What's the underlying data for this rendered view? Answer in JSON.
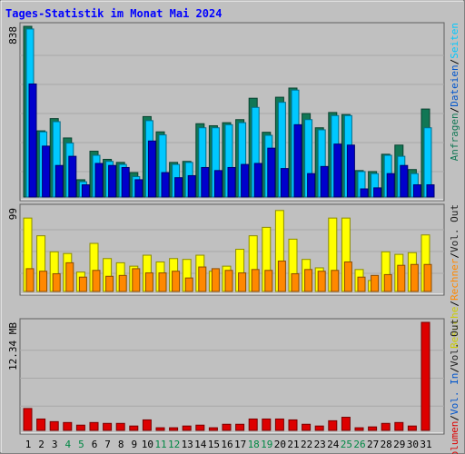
{
  "title": "Tages-Statistik im Monat Mai 2024",
  "colors": {
    "background": "#c0c0c0",
    "panel": "#c0c0c0",
    "title": "#0000ff",
    "anfragen": "#117755",
    "dateien": "#00c8ff",
    "seiten": "#0000cc",
    "besuche": "#ffff00",
    "rechner": "#ff8800",
    "volumen": "#dd0000",
    "weekend_label": "#008844",
    "weekday_label": "#000000"
  },
  "chart_data": [
    {
      "type": "bar",
      "panel": "top",
      "ytick": "838",
      "ylim": [
        0,
        838
      ],
      "side_legend": [
        {
          "text": "Anfragen",
          "color": "#117755"
        },
        {
          "text": "/",
          "color": "#000000"
        },
        {
          "text": "Dateien",
          "color": "#0055cc"
        },
        {
          "text": "/",
          "color": "#000000"
        },
        {
          "text": "Seiten",
          "color": "#00c8ff"
        }
      ],
      "categories": [
        "1",
        "2",
        "3",
        "4",
        "5",
        "6",
        "7",
        "8",
        "9",
        "10",
        "11",
        "12",
        "13",
        "14",
        "15",
        "16",
        "17",
        "18",
        "19",
        "20",
        "21",
        "22",
        "23",
        "24",
        "25",
        "26",
        "27",
        "28",
        "29",
        "30",
        "31"
      ],
      "series": [
        {
          "name": "Anfragen",
          "values": [
            838,
            325,
            385,
            290,
            85,
            225,
            185,
            170,
            120,
            395,
            320,
            170,
            175,
            360,
            350,
            365,
            380,
            485,
            318,
            490,
            535,
            410,
            340,
            415,
            405,
            130,
            125,
            210,
            255,
            135,
            432
          ]
        },
        {
          "name": "Dateien",
          "values": [
            825,
            320,
            370,
            265,
            75,
            205,
            175,
            160,
            100,
            375,
            305,
            160,
            170,
            340,
            340,
            355,
            365,
            440,
            303,
            465,
            525,
            380,
            330,
            400,
            400,
            125,
            115,
            205,
            200,
            115,
            340
          ]
        },
        {
          "name": "Seiten",
          "values": [
            555,
            250,
            155,
            200,
            60,
            165,
            155,
            145,
            85,
            275,
            120,
            95,
            105,
            145,
            130,
            145,
            160,
            165,
            240,
            140,
            355,
            115,
            150,
            260,
            255,
            40,
            45,
            115,
            155,
            60,
            60
          ]
        }
      ]
    },
    {
      "type": "bar",
      "panel": "middle",
      "ytick": "99",
      "ylim": [
        0,
        99
      ],
      "side_legend": [
        {
          "text": "Besuche",
          "color": "#cccc00"
        },
        {
          "text": "/",
          "color": "#000000"
        },
        {
          "text": "Rechner",
          "color": "#ff8800"
        },
        {
          "text": "/",
          "color": "#000000"
        },
        {
          "text": "Vol. Out",
          "color": "#222222"
        }
      ],
      "categories": [
        "1",
        "2",
        "3",
        "4",
        "5",
        "6",
        "7",
        "8",
        "9",
        "10",
        "11",
        "12",
        "13",
        "14",
        "15",
        "16",
        "17",
        "18",
        "19",
        "20",
        "21",
        "22",
        "23",
        "24",
        "25",
        "26",
        "27",
        "28",
        "29",
        "30",
        "31"
      ],
      "series": [
        {
          "name": "Besuche",
          "values": [
            87,
            66,
            47,
            45,
            23,
            57,
            39,
            34,
            30,
            43,
            35,
            39,
            38,
            43,
            24,
            30,
            50,
            66,
            76,
            96,
            62,
            38,
            28,
            87,
            87,
            26,
            13,
            47,
            44,
            46,
            67
          ]
        },
        {
          "name": "Rechner",
          "values": [
            27,
            24,
            21,
            34,
            17,
            25,
            18,
            19,
            27,
            22,
            22,
            24,
            16,
            29,
            27,
            25,
            22,
            26,
            25,
            36,
            21,
            26,
            24,
            25,
            35,
            17,
            19,
            20,
            31,
            32,
            32
          ]
        },
        {
          "name": "Vol. Out",
          "values": [
            0,
            0,
            0,
            0,
            0,
            0,
            0,
            0,
            0,
            0,
            0,
            0,
            0,
            0,
            0,
            0,
            0,
            0,
            0,
            0,
            0,
            0,
            0,
            0,
            0,
            0,
            0,
            0,
            0,
            0,
            0
          ]
        }
      ]
    },
    {
      "type": "bar",
      "panel": "bottom",
      "ytick": "12.34 MB",
      "ylim": [
        0,
        12.34
      ],
      "side_legend": [
        {
          "text": "Volumen",
          "color": "#dd0000"
        },
        {
          "text": "/",
          "color": "#000000"
        },
        {
          "text": "Vol. In",
          "color": "#0055cc"
        },
        {
          "text": "/",
          "color": "#000000"
        },
        {
          "text": "Vol. Out",
          "color": "#222222"
        }
      ],
      "categories": [
        "1",
        "2",
        "3",
        "4",
        "5",
        "6",
        "7",
        "8",
        "9",
        "10",
        "11",
        "12",
        "13",
        "14",
        "15",
        "16",
        "17",
        "18",
        "19",
        "20",
        "21",
        "22",
        "23",
        "24",
        "25",
        "26",
        "27",
        "28",
        "29",
        "30",
        "31"
      ],
      "series": [
        {
          "name": "Volumen",
          "values": [
            2.5,
            1.3,
            1.0,
            0.9,
            0.6,
            0.9,
            0.8,
            0.8,
            0.5,
            1.2,
            0.3,
            0.3,
            0.5,
            0.6,
            0.3,
            0.7,
            0.7,
            1.3,
            1.3,
            1.3,
            1.2,
            0.7,
            0.5,
            1.1,
            1.5,
            0.3,
            0.4,
            0.8,
            0.9,
            0.5,
            12.34
          ]
        }
      ]
    }
  ],
  "x_labels": [
    {
      "text": "1",
      "weekend": false
    },
    {
      "text": "2",
      "weekend": false
    },
    {
      "text": "3",
      "weekend": false
    },
    {
      "text": "4",
      "weekend": true
    },
    {
      "text": "5",
      "weekend": true
    },
    {
      "text": "6",
      "weekend": false
    },
    {
      "text": "7",
      "weekend": false
    },
    {
      "text": "8",
      "weekend": false
    },
    {
      "text": "9",
      "weekend": false
    },
    {
      "text": "10",
      "weekend": false
    },
    {
      "text": "11",
      "weekend": true
    },
    {
      "text": "12",
      "weekend": true
    },
    {
      "text": "13",
      "weekend": false
    },
    {
      "text": "14",
      "weekend": false
    },
    {
      "text": "15",
      "weekend": false
    },
    {
      "text": "16",
      "weekend": false
    },
    {
      "text": "17",
      "weekend": false
    },
    {
      "text": "18",
      "weekend": true
    },
    {
      "text": "19",
      "weekend": true
    },
    {
      "text": "20",
      "weekend": false
    },
    {
      "text": "21",
      "weekend": false
    },
    {
      "text": "22",
      "weekend": false
    },
    {
      "text": "23",
      "weekend": false
    },
    {
      "text": "24",
      "weekend": false
    },
    {
      "text": "25",
      "weekend": true
    },
    {
      "text": "26",
      "weekend": true
    },
    {
      "text": "27",
      "weekend": false
    },
    {
      "text": "28",
      "weekend": false
    },
    {
      "text": "29",
      "weekend": false
    },
    {
      "text": "30",
      "weekend": false
    },
    {
      "text": "31",
      "weekend": false
    }
  ]
}
